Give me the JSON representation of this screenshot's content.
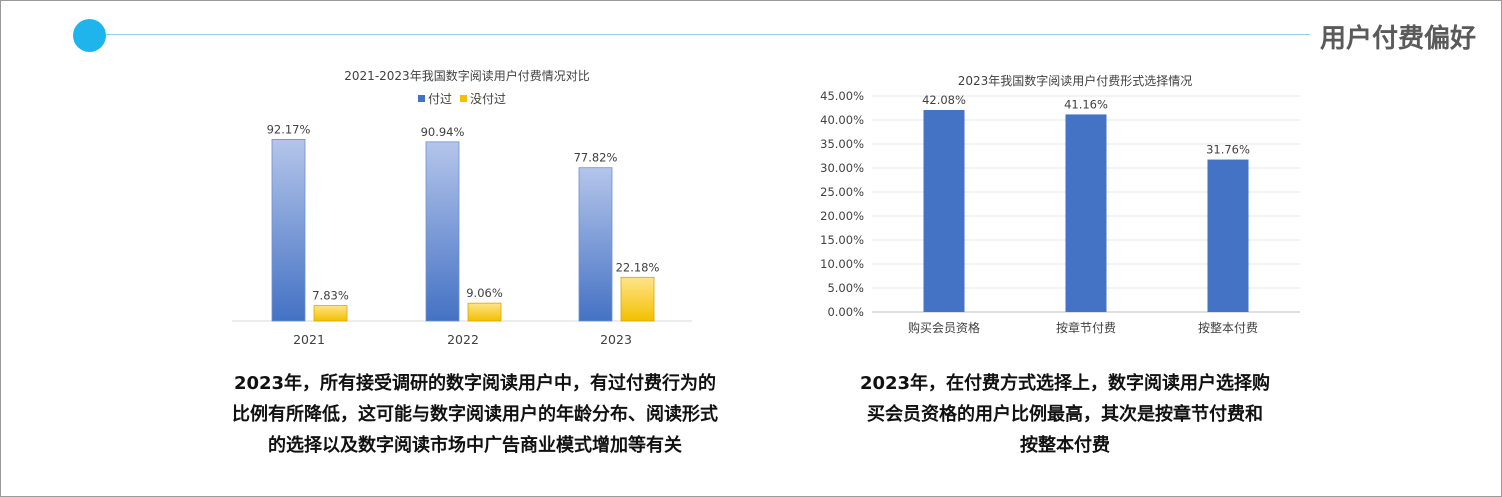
{
  "header": {
    "title": "用户付费偏好"
  },
  "colors": {
    "accent": "#1fb4ec",
    "blue": "#4472c4",
    "gold": "#f2c000"
  },
  "chart_data": [
    {
      "type": "bar",
      "title": "2021-2023年我国数字阅读用户付费情况对比",
      "categories": [
        "2021",
        "2022",
        "2023"
      ],
      "series": [
        {
          "name": "付过",
          "values": [
            92.17,
            90.94,
            77.82
          ],
          "labels": [
            "92.17%",
            "90.94%",
            "77.82%"
          ]
        },
        {
          "name": "没付过",
          "values": [
            7.83,
            9.06,
            22.18
          ],
          "labels": [
            "7.83%",
            "9.06%",
            "22.18%"
          ]
        }
      ],
      "ylim": [
        0,
        100
      ],
      "legend": "top"
    },
    {
      "type": "bar",
      "title": "2023年我国数字阅读用户付费形式选择情况",
      "categories": [
        "购买会员资格",
        "按章节付费",
        "按整本付费"
      ],
      "values": [
        42.08,
        41.16,
        31.76
      ],
      "labels": [
        "42.08%",
        "41.16%",
        "31.76%"
      ],
      "yticks": [
        "0.00%",
        "5.00%",
        "10.00%",
        "15.00%",
        "20.00%",
        "25.00%",
        "30.00%",
        "35.00%",
        "40.00%",
        "45.00%"
      ],
      "ylim": [
        0,
        45
      ],
      "grid": true
    }
  ],
  "captions": {
    "left": [
      "2023年，所有接受调研的数字阅读用户中，有过付费行为的",
      "比例有所降低，这可能与数字阅读用户的年龄分布、阅读形式",
      "的选择以及数字阅读市场中广告商业模式增加等有关"
    ],
    "right": [
      "2023年，在付费方式选择上，数字阅读用户选择购",
      "买会员资格的用户比例最高，其次是按章节付费和",
      "按整本付费"
    ]
  }
}
